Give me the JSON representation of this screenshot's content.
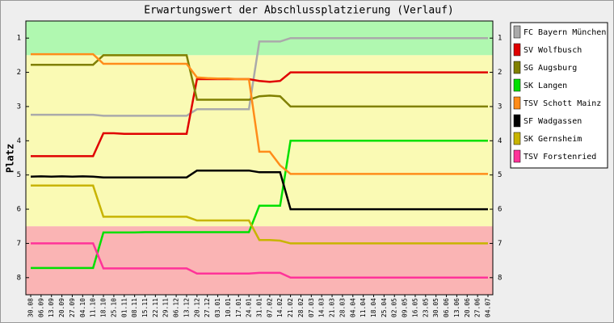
{
  "chart_data": {
    "type": "line",
    "title": "Erwartungswert der Abschlussplatzierung (Verlauf)",
    "y_label": "Platz",
    "categories": [
      "30.08",
      "06.09",
      "13.09",
      "20.09",
      "27.09",
      "04.10",
      "11.10",
      "18.10",
      "25.10",
      "01.11",
      "08.11",
      "15.11",
      "22.11",
      "29.11",
      "06.12",
      "13.12",
      "20.12",
      "27.12",
      "03.01",
      "10.01",
      "17.01",
      "24.01",
      "31.01",
      "07.02",
      "14.02",
      "21.02",
      "28.02",
      "07.03",
      "14.03",
      "21.03",
      "28.03",
      "04.04",
      "11.04",
      "18.04",
      "25.04",
      "02.05",
      "09.05",
      "16.05",
      "23.05",
      "30.05",
      "06.06",
      "13.06",
      "20.06",
      "27.06",
      "04.07"
    ],
    "ylim": [
      0.5,
      8.5
    ],
    "y_inverted": true,
    "yticks": [
      1,
      2,
      3,
      4,
      5,
      6,
      7,
      8
    ],
    "bands": [
      {
        "from": 0.5,
        "to": 1.5,
        "color": "#b0f8b0"
      },
      {
        "from": 1.5,
        "to": 6.5,
        "color": "#fafab4"
      },
      {
        "from": 6.5,
        "to": 8.5,
        "color": "#fab4b4"
      }
    ],
    "legend": "right",
    "series": [
      {
        "name": "FC Bayern München",
        "color": "#aaaaaa",
        "values": [
          3.24,
          3.24,
          3.24,
          3.24,
          3.24,
          3.24,
          3.24,
          3.27,
          3.27,
          3.27,
          3.27,
          3.27,
          3.27,
          3.27,
          3.27,
          3.27,
          3.08,
          3.08,
          3.08,
          3.08,
          3.08,
          3.08,
          1.1,
          1.1,
          1.1,
          1.0,
          1.0,
          1.0,
          1.0,
          1.0,
          1.0,
          1.0,
          1.0,
          1.0,
          1.0,
          1.0,
          1.0,
          1.0,
          1.0,
          1.0,
          1.0,
          1.0,
          1.0,
          1.0,
          1.0
        ]
      },
      {
        "name": "SV Wolfbusch",
        "color": "#e00000",
        "values": [
          4.45,
          4.45,
          4.45,
          4.45,
          4.45,
          4.45,
          4.45,
          3.78,
          3.78,
          3.8,
          3.8,
          3.8,
          3.8,
          3.8,
          3.8,
          3.8,
          2.2,
          2.2,
          2.2,
          2.2,
          2.2,
          2.2,
          2.25,
          2.28,
          2.25,
          2.0,
          2.0,
          2.0,
          2.0,
          2.0,
          2.0,
          2.0,
          2.0,
          2.0,
          2.0,
          2.0,
          2.0,
          2.0,
          2.0,
          2.0,
          2.0,
          2.0,
          2.0,
          2.0,
          2.0
        ]
      },
      {
        "name": "SG Augsburg",
        "color": "#808000",
        "values": [
          1.78,
          1.78,
          1.78,
          1.78,
          1.78,
          1.78,
          1.78,
          1.5,
          1.5,
          1.5,
          1.5,
          1.5,
          1.5,
          1.5,
          1.5,
          1.5,
          2.8,
          2.8,
          2.8,
          2.8,
          2.8,
          2.8,
          2.7,
          2.68,
          2.7,
          3.0,
          3.0,
          3.0,
          3.0,
          3.0,
          3.0,
          3.0,
          3.0,
          3.0,
          3.0,
          3.0,
          3.0,
          3.0,
          3.0,
          3.0,
          3.0,
          3.0,
          3.0,
          3.0,
          3.0
        ]
      },
      {
        "name": "SK Langen",
        "color": "#00e000",
        "values": [
          7.72,
          7.72,
          7.72,
          7.72,
          7.72,
          7.72,
          7.72,
          6.68,
          6.68,
          6.68,
          6.68,
          6.67,
          6.67,
          6.67,
          6.67,
          6.67,
          6.67,
          6.67,
          6.67,
          6.67,
          6.67,
          6.67,
          5.9,
          5.9,
          5.9,
          4.0,
          4.0,
          4.0,
          4.0,
          4.0,
          4.0,
          4.0,
          4.0,
          4.0,
          4.0,
          4.0,
          4.0,
          4.0,
          4.0,
          4.0,
          4.0,
          4.0,
          4.0,
          4.0,
          4.0
        ]
      },
      {
        "name": "TSV Schott Mainz",
        "color": "#ff8c1a",
        "values": [
          1.47,
          1.47,
          1.47,
          1.47,
          1.47,
          1.47,
          1.47,
          1.75,
          1.75,
          1.75,
          1.75,
          1.75,
          1.75,
          1.75,
          1.75,
          1.75,
          2.15,
          2.17,
          2.18,
          2.18,
          2.2,
          2.2,
          4.32,
          4.32,
          4.72,
          4.97,
          4.97,
          4.97,
          4.97,
          4.97,
          4.97,
          4.97,
          4.97,
          4.97,
          4.97,
          4.97,
          4.97,
          4.97,
          4.97,
          4.97,
          4.97,
          4.97,
          4.97,
          4.97,
          4.97
        ]
      },
      {
        "name": "SF Wadgassen",
        "color": "#000000",
        "values": [
          5.05,
          5.04,
          5.05,
          5.04,
          5.05,
          5.04,
          5.05,
          5.07,
          5.07,
          5.07,
          5.07,
          5.07,
          5.07,
          5.07,
          5.07,
          5.07,
          4.87,
          4.87,
          4.87,
          4.87,
          4.87,
          4.87,
          4.92,
          4.92,
          4.92,
          6.0,
          6.0,
          6.0,
          6.0,
          6.0,
          6.0,
          6.0,
          6.0,
          6.0,
          6.0,
          6.0,
          6.0,
          6.0,
          6.0,
          6.0,
          6.0,
          6.0,
          6.0,
          6.0,
          6.0
        ]
      },
      {
        "name": "SK Gernsheim",
        "color": "#c8b400",
        "values": [
          5.31,
          5.31,
          5.31,
          5.31,
          5.31,
          5.31,
          5.31,
          6.22,
          6.22,
          6.22,
          6.22,
          6.22,
          6.22,
          6.22,
          6.22,
          6.22,
          6.33,
          6.33,
          6.33,
          6.33,
          6.33,
          6.33,
          6.9,
          6.9,
          6.92,
          7.0,
          7.0,
          7.0,
          7.0,
          7.0,
          7.0,
          7.0,
          7.0,
          7.0,
          7.0,
          7.0,
          7.0,
          7.0,
          7.0,
          7.0,
          7.0,
          7.0,
          7.0,
          7.0,
          7.0
        ]
      },
      {
        "name": "TSV Forstenried",
        "color": "#ff3399",
        "values": [
          7.0,
          7.0,
          7.0,
          7.0,
          7.0,
          7.0,
          7.0,
          7.73,
          7.73,
          7.73,
          7.73,
          7.73,
          7.73,
          7.73,
          7.73,
          7.73,
          7.88,
          7.88,
          7.88,
          7.88,
          7.88,
          7.88,
          7.86,
          7.86,
          7.86,
          8.0,
          8.0,
          8.0,
          8.0,
          8.0,
          8.0,
          8.0,
          8.0,
          8.0,
          8.0,
          8.0,
          8.0,
          8.0,
          8.0,
          8.0,
          8.0,
          8.0,
          8.0,
          8.0,
          8.0
        ]
      }
    ]
  }
}
